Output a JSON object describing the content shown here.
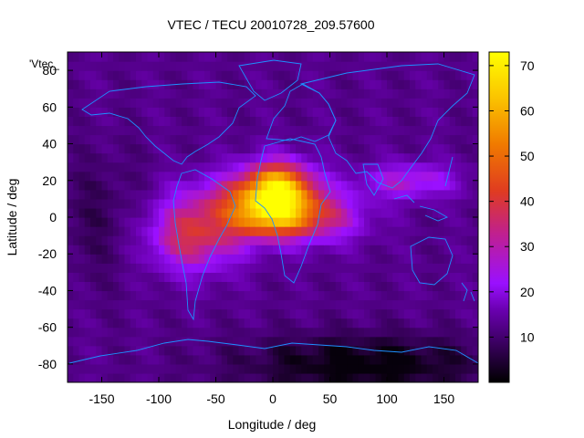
{
  "chart_data": {
    "type": "heatmap",
    "title": "VTEC / TECU 20010728_209.57600",
    "xlabel": "Longitude / deg",
    "ylabel": "Latitude / deg",
    "legend_label": "'Vtec_",
    "xlim": [
      -180,
      180
    ],
    "ylim": [
      -90,
      90
    ],
    "x_ticks": [
      -150,
      -100,
      -50,
      0,
      50,
      100,
      150
    ],
    "y_ticks": [
      -80,
      -60,
      -40,
      -20,
      0,
      20,
      40,
      60,
      80
    ],
    "colorbar": {
      "min": 0,
      "max": 73,
      "ticks": [
        10,
        20,
        30,
        40,
        50,
        60,
        70
      ]
    },
    "grid_resolution_deg": [
      5,
      5
    ],
    "field_model": {
      "background_tecu": 14,
      "enhancements": [
        {
          "lon": -70,
          "lat": -10,
          "amp": 28,
          "sigma_lon": 30,
          "sigma_lat": 14
        },
        {
          "lon": 5,
          "lat": 18,
          "amp": 38,
          "sigma_lon": 22,
          "sigma_lat": 10
        },
        {
          "lon": -5,
          "lat": 0,
          "amp": 32,
          "sigma_lon": 25,
          "sigma_lat": 9
        },
        {
          "lon": 40,
          "lat": 0,
          "amp": 22,
          "sigma_lon": 30,
          "sigma_lat": 10
        },
        {
          "lon": 120,
          "lat": 20,
          "amp": 18,
          "sigma_lon": 30,
          "sigma_lat": 7
        },
        {
          "lon": -20,
          "lat": 12,
          "amp": 18,
          "sigma_lon": 40,
          "sigma_lat": 10
        }
      ],
      "depletions": [
        {
          "lon": 80,
          "lat": -80,
          "amp": 14,
          "sigma_lon": 80,
          "sigma_lat": 12
        },
        {
          "lon": -150,
          "lat": 0,
          "amp": 6,
          "sigma_lon": 30,
          "sigma_lat": 25
        }
      ]
    },
    "coastlines": "world continents outline overlay (cyan)",
    "colors": {
      "coastline": "#1e90ff",
      "palette": [
        "#000000",
        "#3b0061",
        "#6a00b0",
        "#9a10ff",
        "#c0208f",
        "#e03c20",
        "#f07a00",
        "#fbc300",
        "#ffff00"
      ]
    }
  }
}
